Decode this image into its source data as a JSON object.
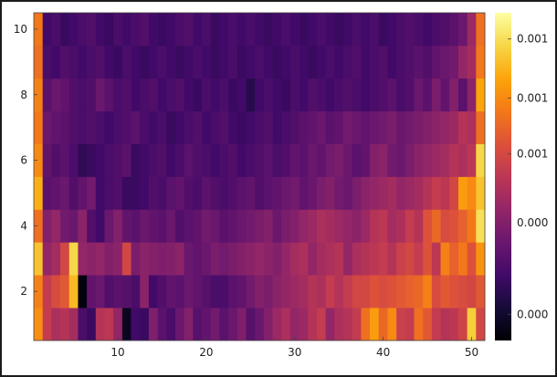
{
  "chart_data": {
    "type": "heatmap",
    "title": "",
    "xlabel": "",
    "ylabel": "",
    "x_range": [
      0.5,
      51.5
    ],
    "y_range": [
      0.5,
      10.5
    ],
    "x_ticks": [
      10,
      20,
      30,
      40,
      50
    ],
    "y_ticks": [
      2,
      4,
      6,
      8,
      10
    ],
    "colormap": "inferno",
    "colorbar": {
      "position": "right",
      "tick_labels": [
        "0.000",
        "0.000",
        "0.001",
        "0.001",
        "0.001"
      ],
      "tick_levels": [
        0.08,
        0.36,
        0.57,
        0.74,
        0.92
      ]
    },
    "grid": false,
    "columns": 51,
    "rows": 10,
    "values_normalized": [
      [
        0.75,
        0.52,
        0.46,
        0.48,
        0.44,
        0.22,
        0.18,
        0.48,
        0.5,
        0.4,
        0.05,
        0.2,
        0.18,
        0.35,
        0.26,
        0.22,
        0.3,
        0.36,
        0.25,
        0.28,
        0.32,
        0.26,
        0.3,
        0.35,
        0.25,
        0.3,
        0.36,
        0.42,
        0.46,
        0.4,
        0.42,
        0.48,
        0.52,
        0.4,
        0.46,
        0.48,
        0.52,
        0.68,
        0.78,
        0.66,
        0.74,
        0.54,
        0.52,
        0.68,
        0.62,
        0.52,
        0.48,
        0.5,
        0.55,
        0.88,
        0.56
      ],
      [
        0.72,
        0.52,
        0.58,
        0.62,
        0.84,
        0.02,
        0.28,
        0.3,
        0.24,
        0.26,
        0.25,
        0.22,
        0.38,
        0.2,
        0.24,
        0.28,
        0.26,
        0.3,
        0.28,
        0.25,
        0.22,
        0.22,
        0.26,
        0.28,
        0.32,
        0.36,
        0.34,
        0.38,
        0.4,
        0.42,
        0.44,
        0.48,
        0.46,
        0.52,
        0.48,
        0.52,
        0.56,
        0.56,
        0.6,
        0.58,
        0.6,
        0.62,
        0.64,
        0.66,
        0.72,
        0.58,
        0.62,
        0.6,
        0.58,
        0.56,
        0.62
      ],
      [
        0.86,
        0.4,
        0.44,
        0.56,
        0.9,
        0.4,
        0.38,
        0.4,
        0.36,
        0.38,
        0.56,
        0.34,
        0.38,
        0.36,
        0.35,
        0.36,
        0.38,
        0.3,
        0.28,
        0.3,
        0.34,
        0.32,
        0.34,
        0.36,
        0.38,
        0.4,
        0.38,
        0.36,
        0.4,
        0.44,
        0.46,
        0.4,
        0.44,
        0.46,
        0.48,
        0.4,
        0.46,
        0.48,
        0.5,
        0.52,
        0.48,
        0.54,
        0.56,
        0.52,
        0.6,
        0.5,
        0.72,
        0.64,
        0.7,
        0.6,
        0.76
      ],
      [
        0.68,
        0.36,
        0.4,
        0.32,
        0.3,
        0.38,
        0.24,
        0.2,
        0.3,
        0.36,
        0.28,
        0.26,
        0.3,
        0.28,
        0.26,
        0.3,
        0.24,
        0.26,
        0.28,
        0.32,
        0.3,
        0.26,
        0.28,
        0.3,
        0.32,
        0.34,
        0.36,
        0.3,
        0.34,
        0.36,
        0.4,
        0.42,
        0.46,
        0.44,
        0.42,
        0.4,
        0.38,
        0.42,
        0.48,
        0.5,
        0.44,
        0.46,
        0.52,
        0.48,
        0.6,
        0.66,
        0.58,
        0.6,
        0.64,
        0.7,
        0.92
      ],
      [
        0.82,
        0.26,
        0.28,
        0.3,
        0.24,
        0.28,
        0.32,
        0.2,
        0.22,
        0.24,
        0.18,
        0.18,
        0.2,
        0.24,
        0.22,
        0.26,
        0.28,
        0.24,
        0.22,
        0.26,
        0.24,
        0.22,
        0.24,
        0.26,
        0.28,
        0.24,
        0.26,
        0.28,
        0.3,
        0.32,
        0.28,
        0.3,
        0.34,
        0.36,
        0.32,
        0.3,
        0.34,
        0.38,
        0.4,
        0.42,
        0.44,
        0.4,
        0.42,
        0.44,
        0.48,
        0.52,
        0.5,
        0.56,
        0.78,
        0.74,
        0.86
      ],
      [
        0.74,
        0.28,
        0.24,
        0.26,
        0.22,
        0.16,
        0.18,
        0.2,
        0.22,
        0.24,
        0.26,
        0.18,
        0.2,
        0.22,
        0.24,
        0.2,
        0.22,
        0.26,
        0.24,
        0.22,
        0.2,
        0.22,
        0.24,
        0.2,
        0.22,
        0.24,
        0.26,
        0.22,
        0.24,
        0.28,
        0.26,
        0.3,
        0.28,
        0.32,
        0.34,
        0.3,
        0.26,
        0.28,
        0.36,
        0.38,
        0.32,
        0.3,
        0.34,
        0.38,
        0.4,
        0.42,
        0.44,
        0.48,
        0.46,
        0.5,
        0.9
      ],
      [
        0.7,
        0.3,
        0.28,
        0.26,
        0.24,
        0.22,
        0.24,
        0.22,
        0.2,
        0.22,
        0.24,
        0.26,
        0.22,
        0.2,
        0.22,
        0.18,
        0.2,
        0.22,
        0.24,
        0.2,
        0.22,
        0.24,
        0.2,
        0.18,
        0.2,
        0.22,
        0.24,
        0.2,
        0.22,
        0.24,
        0.26,
        0.28,
        0.3,
        0.26,
        0.28,
        0.32,
        0.3,
        0.28,
        0.3,
        0.32,
        0.34,
        0.3,
        0.32,
        0.34,
        0.36,
        0.38,
        0.4,
        0.42,
        0.48,
        0.46,
        0.68
      ],
      [
        0.72,
        0.26,
        0.3,
        0.28,
        0.24,
        0.22,
        0.24,
        0.3,
        0.26,
        0.22,
        0.24,
        0.2,
        0.22,
        0.24,
        0.2,
        0.22,
        0.24,
        0.2,
        0.18,
        0.22,
        0.2,
        0.22,
        0.18,
        0.2,
        0.14,
        0.2,
        0.22,
        0.2,
        0.18,
        0.22,
        0.2,
        0.24,
        0.22,
        0.2,
        0.22,
        0.24,
        0.22,
        0.2,
        0.22,
        0.24,
        0.26,
        0.22,
        0.24,
        0.3,
        0.26,
        0.34,
        0.28,
        0.36,
        0.26,
        0.38,
        0.8
      ],
      [
        0.68,
        0.22,
        0.2,
        0.24,
        0.22,
        0.2,
        0.22,
        0.24,
        0.2,
        0.18,
        0.22,
        0.2,
        0.18,
        0.2,
        0.22,
        0.2,
        0.18,
        0.2,
        0.22,
        0.2,
        0.18,
        0.2,
        0.22,
        0.18,
        0.2,
        0.22,
        0.2,
        0.18,
        0.2,
        0.22,
        0.2,
        0.18,
        0.2,
        0.22,
        0.2,
        0.22,
        0.24,
        0.2,
        0.22,
        0.24,
        0.2,
        0.22,
        0.24,
        0.26,
        0.24,
        0.28,
        0.3,
        0.32,
        0.4,
        0.44,
        0.7
      ],
      [
        0.7,
        0.2,
        0.22,
        0.18,
        0.2,
        0.22,
        0.24,
        0.2,
        0.18,
        0.22,
        0.2,
        0.22,
        0.24,
        0.2,
        0.18,
        0.2,
        0.22,
        0.24,
        0.2,
        0.22,
        0.18,
        0.2,
        0.22,
        0.2,
        0.22,
        0.2,
        0.18,
        0.2,
        0.22,
        0.2,
        0.18,
        0.2,
        0.22,
        0.2,
        0.18,
        0.2,
        0.22,
        0.2,
        0.22,
        0.18,
        0.2,
        0.22,
        0.24,
        0.22,
        0.2,
        0.22,
        0.24,
        0.26,
        0.3,
        0.42,
        0.68
      ]
    ]
  }
}
